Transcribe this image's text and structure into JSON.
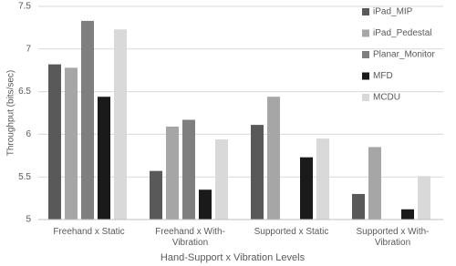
{
  "chart_data": {
    "type": "bar",
    "x_label": "Hand-Support x Vibration Levels",
    "y_label": "Throughput (bits/sec)",
    "categories": [
      "Freehand x Static",
      "Freehand x With-Vibration",
      "Supported x Static",
      "Supported x With-Vibration"
    ],
    "series": [
      {
        "name": "iPad_MIP",
        "color": "#595959",
        "values": [
          6.82,
          5.57,
          6.11,
          5.3
        ]
      },
      {
        "name": "iPad_Pedestal",
        "color": "#a6a6a6",
        "values": [
          6.78,
          6.09,
          6.44,
          5.85
        ]
      },
      {
        "name": "Planar_Monitor",
        "color": "#7f7f7f",
        "values": [
          7.33,
          6.17,
          null,
          null
        ]
      },
      {
        "name": "MFD",
        "color": "#1a1a1a",
        "values": [
          6.44,
          5.35,
          5.73,
          5.12
        ]
      },
      {
        "name": "MCDU",
        "color": "#d9d9d9",
        "values": [
          7.23,
          5.94,
          5.95,
          5.51
        ]
      }
    ],
    "ylim": [
      5,
      7.5
    ],
    "yticks": [
      5,
      5.5,
      6,
      6.5,
      7,
      7.5
    ],
    "grid": true,
    "legend": "top-right"
  }
}
